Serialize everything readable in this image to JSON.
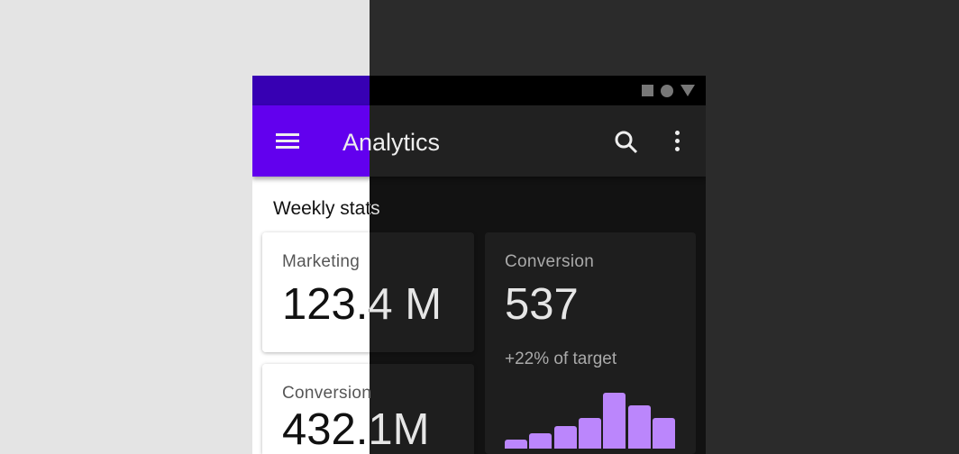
{
  "status_bar": {
    "icons": [
      "square-icon",
      "circle-icon",
      "triangle-icon"
    ]
  },
  "app_bar": {
    "title": "Analytics",
    "menu_icon": "menu-icon",
    "search_icon": "search-icon",
    "more_icon": "more-vert-icon"
  },
  "section_title": "Weekly stats",
  "cards": [
    {
      "label": "Marketing",
      "value": "123.4 M"
    },
    {
      "label": "Conversion",
      "value": "537",
      "subtitle": "+22% of target"
    },
    {
      "label": "Conversion",
      "value": "432.1M"
    }
  ],
  "chart_data": {
    "type": "bar",
    "values": [
      10,
      17,
      25,
      34,
      62,
      48,
      34
    ],
    "color": "#bb86fc"
  },
  "colors": {
    "primary": "#6200ee",
    "primary_variant": "#3700b3",
    "dark_surface": "#1e1e1e",
    "dark_background": "#121212"
  }
}
